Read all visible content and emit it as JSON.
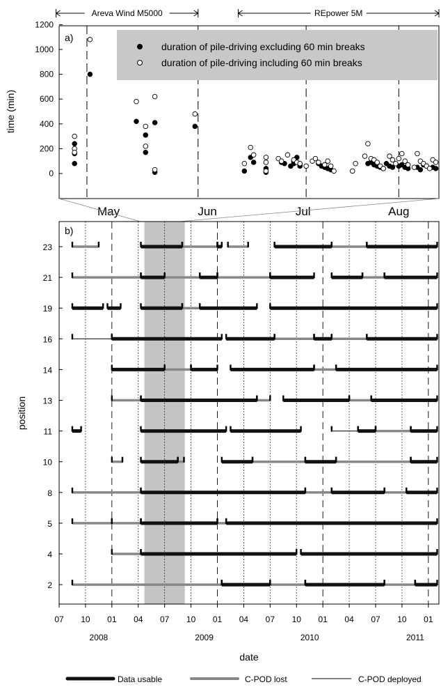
{
  "chart_data": [
    {
      "panel_label": "a)",
      "type": "scatter",
      "ylabel": "time (min)",
      "y_ticks": [
        "1200",
        "1000",
        "800",
        "600",
        "400",
        "200",
        "0"
      ],
      "ylim": [
        -100,
        1200
      ],
      "x_tick_labels": [
        "May",
        "Jun",
        "Jul",
        "Aug"
      ],
      "x_range_days": [
        0,
        123
      ],
      "turbine_spans": [
        {
          "label": "Areva Wind M5000",
          "from": -1,
          "to": 45
        },
        {
          "label": "REpower 5M",
          "from": 58,
          "to": 123
        }
      ],
      "legend": [
        {
          "marker": "filled",
          "label": "duration of pile-driving excluding 60 min breaks"
        },
        {
          "marker": "open",
          "label": "duration of pile-driving including 60 min breaks"
        }
      ],
      "legend_placement": "top-right",
      "series": [
        {
          "marker": "filled",
          "points": [
            [
              5,
              240
            ],
            [
              5,
              160
            ],
            [
              5,
              80
            ],
            [
              10,
              800
            ],
            [
              25,
              420
            ],
            [
              28,
              310
            ],
            [
              28,
              170
            ],
            [
              31,
              410
            ],
            [
              31,
              10
            ],
            [
              44,
              380
            ],
            [
              60,
              20
            ],
            [
              62,
              130
            ],
            [
              63,
              90
            ],
            [
              67,
              40
            ],
            [
              67,
              10
            ],
            [
              72,
              90
            ],
            [
              73,
              80
            ],
            [
              75,
              60
            ],
            [
              76,
              100
            ],
            [
              76,
              80
            ],
            [
              77,
              130
            ],
            [
              78,
              70
            ],
            [
              78,
              60
            ],
            [
              84,
              80
            ],
            [
              85,
              60
            ],
            [
              86,
              50
            ],
            [
              87,
              40
            ],
            [
              88,
              30
            ],
            [
              100,
              80
            ],
            [
              101,
              90
            ],
            [
              102,
              70
            ],
            [
              103,
              60
            ],
            [
              104,
              50
            ],
            [
              105,
              40
            ],
            [
              106,
              80
            ],
            [
              107,
              60
            ],
            [
              108,
              50
            ],
            [
              110,
              60
            ],
            [
              111,
              70
            ],
            [
              112,
              50
            ],
            [
              113,
              40
            ],
            [
              116,
              50
            ],
            [
              117,
              30
            ],
            [
              118,
              70
            ],
            [
              119,
              60
            ],
            [
              121,
              50
            ],
            [
              122,
              40
            ]
          ]
        },
        {
          "marker": "open",
          "points": [
            [
              5,
              300
            ],
            [
              5,
              200
            ],
            [
              5,
              170
            ],
            [
              10,
              1080
            ],
            [
              25,
              580
            ],
            [
              28,
              380
            ],
            [
              28,
              220
            ],
            [
              31,
              620
            ],
            [
              31,
              30
            ],
            [
              44,
              480
            ],
            [
              60,
              80
            ],
            [
              62,
              210
            ],
            [
              63,
              150
            ],
            [
              67,
              130
            ],
            [
              67,
              90
            ],
            [
              67,
              20
            ],
            [
              71,
              120
            ],
            [
              72,
              100
            ],
            [
              74,
              150
            ],
            [
              76,
              110
            ],
            [
              77,
              90
            ],
            [
              78,
              80
            ],
            [
              80,
              60
            ],
            [
              82,
              100
            ],
            [
              83,
              120
            ],
            [
              84,
              90
            ],
            [
              86,
              70
            ],
            [
              87,
              100
            ],
            [
              88,
              60
            ],
            [
              89,
              20
            ],
            [
              95,
              20
            ],
            [
              96,
              80
            ],
            [
              99,
              140
            ],
            [
              100,
              240
            ],
            [
              101,
              120
            ],
            [
              102,
              110
            ],
            [
              103,
              90
            ],
            [
              104,
              60
            ],
            [
              105,
              40
            ],
            [
              107,
              140
            ],
            [
              108,
              110
            ],
            [
              109,
              80
            ],
            [
              110,
              120
            ],
            [
              111,
              160
            ],
            [
              112,
              100
            ],
            [
              113,
              70
            ],
            [
              115,
              50
            ],
            [
              116,
              160
            ],
            [
              117,
              100
            ],
            [
              118,
              80
            ],
            [
              119,
              60
            ],
            [
              120,
              40
            ],
            [
              121,
              110
            ],
            [
              122,
              90
            ]
          ]
        }
      ]
    },
    {
      "panel_label": "b)",
      "type": "timeline",
      "ylabel": "position",
      "xlabel": "date",
      "x_months": [
        "07",
        "10",
        "01",
        "04",
        "07",
        "10",
        "01",
        "04",
        "07",
        "10",
        "01",
        "04",
        "07",
        "10",
        "01"
      ],
      "x_years": [
        "2008",
        "2009",
        "2010",
        "2011"
      ],
      "x_range_months": [
        0,
        43.2
      ],
      "shaded_period_months": [
        9.7,
        14.3
      ],
      "positions": [
        "23",
        "21",
        "19",
        "16",
        "14",
        "13",
        "11",
        "10",
        "8",
        "5",
        "4",
        "2"
      ],
      "legend": [
        {
          "style": "usable",
          "label": "Data usable"
        },
        {
          "style": "lost",
          "label": "C-POD lost"
        },
        {
          "style": "deployed",
          "label": "C-POD deployed"
        }
      ],
      "rows": [
        {
          "position": "23",
          "segments": [
            [
              "lost",
              1.5,
              4.5
            ],
            [
              "usable",
              9.3,
              14
            ],
            [
              "lost",
              14,
              18
            ],
            [
              "usable",
              18,
              18.5
            ],
            [
              "lost",
              19.2,
              21.5
            ],
            [
              "usable",
              24.5,
              31
            ],
            [
              "lost",
              31,
              35
            ],
            [
              "usable",
              35,
              43
            ]
          ]
        },
        {
          "position": "21",
          "segments": [
            [
              "lost",
              1.5,
              9.3
            ],
            [
              "usable",
              9.3,
              12
            ],
            [
              "lost",
              12,
              16
            ],
            [
              "usable",
              16,
              18
            ],
            [
              "lost",
              18,
              24
            ],
            [
              "usable",
              24,
              29
            ],
            [
              "usable",
              31,
              34.5
            ],
            [
              "lost",
              34.5,
              37
            ],
            [
              "usable",
              37,
              43
            ]
          ]
        },
        {
          "position": "19",
          "segments": [
            [
              "usable",
              1.5,
              5
            ],
            [
              "usable",
              5.5,
              7
            ],
            [
              "usable",
              9.3,
              14
            ],
            [
              "lost",
              14,
              16
            ],
            [
              "usable",
              16,
              22.5
            ],
            [
              "usable",
              24,
              43
            ]
          ]
        },
        {
          "position": "16",
          "segments": [
            [
              "deployed",
              1.5,
              6
            ],
            [
              "usable",
              6,
              18.5
            ],
            [
              "usable",
              19,
              24.5
            ],
            [
              "lost",
              24.5,
              29
            ],
            [
              "usable",
              29,
              31
            ],
            [
              "lost",
              31,
              35
            ],
            [
              "usable",
              35,
              43
            ]
          ]
        },
        {
          "position": "14",
          "segments": [
            [
              "usable",
              6,
              12
            ],
            [
              "lost",
              12,
              15
            ],
            [
              "usable",
              15,
              18
            ],
            [
              "usable",
              19.5,
              29
            ],
            [
              "lost",
              29,
              31.5
            ],
            [
              "usable",
              31.5,
              43
            ]
          ]
        },
        {
          "position": "13",
          "segments": [
            [
              "lost",
              6,
              9.3
            ],
            [
              "usable",
              9.3,
              22.5
            ],
            [
              "lost",
              22.5,
              24
            ],
            [
              "usable",
              25.5,
              33
            ],
            [
              "lost",
              33,
              35.5
            ],
            [
              "usable",
              35.5,
              43
            ]
          ]
        },
        {
          "position": "11",
          "segments": [
            [
              "usable",
              1.5,
              2.5
            ],
            [
              "usable",
              9.3,
              19
            ],
            [
              "usable",
              19.5,
              27.5
            ],
            [
              "deployed",
              31,
              34
            ],
            [
              "usable",
              34,
              36
            ],
            [
              "lost",
              36,
              40
            ],
            [
              "usable",
              40,
              43
            ]
          ]
        },
        {
          "position": "10",
          "segments": [
            [
              "lost",
              6,
              7.2
            ],
            [
              "usable",
              9.3,
              13.5
            ],
            [
              "lost",
              13.5,
              14.2
            ],
            [
              "usable",
              18.5,
              22
            ],
            [
              "lost",
              22,
              28
            ],
            [
              "usable",
              28,
              31.5
            ],
            [
              "lost",
              31.5,
              40
            ],
            [
              "usable",
              40,
              43
            ]
          ]
        },
        {
          "position": "8",
          "segments": [
            [
              "lost",
              1.5,
              9.3
            ],
            [
              "usable",
              9.3,
              28
            ],
            [
              "lost",
              28,
              31
            ],
            [
              "usable",
              31,
              37
            ],
            [
              "lost",
              37,
              39.5
            ],
            [
              "usable",
              39.5,
              43
            ]
          ]
        },
        {
          "position": "5",
          "segments": [
            [
              "lost",
              1.5,
              6
            ],
            [
              "lost",
              6,
              9.3
            ],
            [
              "usable",
              9.3,
              18
            ],
            [
              "lost",
              18,
              19
            ],
            [
              "usable",
              19,
              43
            ]
          ]
        },
        {
          "position": "4",
          "segments": [
            [
              "lost",
              6,
              9.3
            ],
            [
              "usable",
              9.3,
              27
            ],
            [
              "usable",
              27.5,
              43
            ]
          ]
        },
        {
          "position": "2",
          "segments": [
            [
              "lost",
              1.5,
              18.5
            ],
            [
              "usable",
              18.5,
              24
            ],
            [
              "lost",
              24,
              28
            ],
            [
              "usable",
              28,
              37
            ],
            [
              "lost",
              37,
              40.5
            ],
            [
              "usable",
              40.5,
              43
            ]
          ]
        }
      ]
    }
  ]
}
